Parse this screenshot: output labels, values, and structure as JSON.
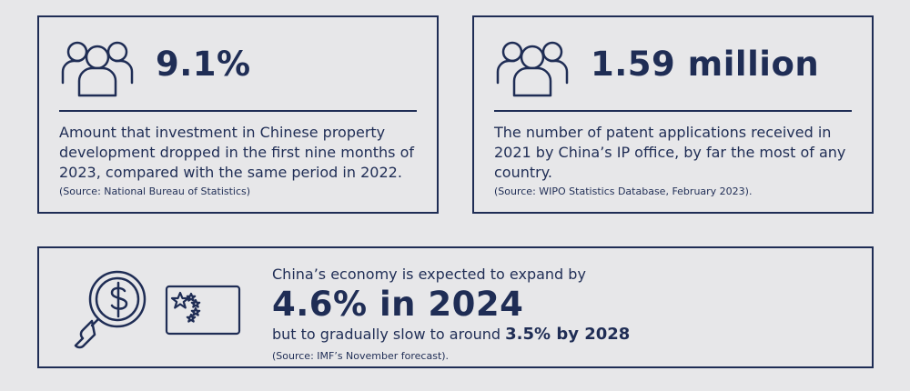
{
  "stat1": {
    "value": "9.1%",
    "description": "Amount that investment in Chinese property development dropped in the first nine months of 2023, compared with the same period in 2022.",
    "source": "(Source: National Bureau of Statistics)"
  },
  "stat2": {
    "value": "1.59 million",
    "description": "The number of patent applications received in 2021 by China’s IP office, by far the most of any country.",
    "source": "(Source: WIPO Statistics Database, February 2023)."
  },
  "stat3": {
    "intro": "China’s economy is expected to expand by",
    "value": "4.6% in 2024",
    "followup": "but to gradually slow to around ",
    "followup_value": "3.5% by 2028",
    "source": "(Source: IMF’s November forecast)."
  },
  "colors": {
    "navy": "#1f2d55",
    "background": "#e7e7e9"
  },
  "icons": [
    "people-icon",
    "people-icon",
    "magnifier-dollar-icon",
    "china-flag-icon"
  ]
}
